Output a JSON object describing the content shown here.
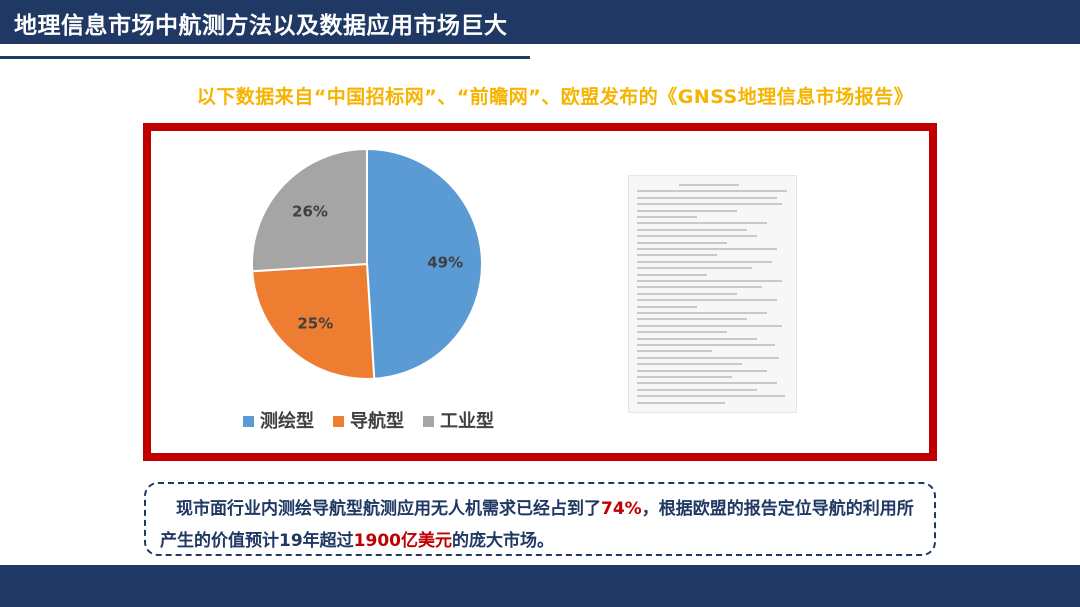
{
  "header": {
    "title": "地理信息市场中航测方法以及数据应用市场巨大"
  },
  "subtitle": "以下数据来自“中国招标网”、“前瞻网”、欧盟发布的《GNSS地理信息市场报告》",
  "chart_data": {
    "type": "pie",
    "categories": [
      "测绘型",
      "导航型",
      "工业型"
    ],
    "values": [
      49,
      25,
      26
    ],
    "labels": [
      "49%",
      "25%",
      "26%"
    ],
    "colors": [
      "#5b9bd5",
      "#ed7d31",
      "#a5a5a5"
    ],
    "legend_position": "bottom"
  },
  "note": {
    "part1": "现市面行业内测绘导航型航测应用无人机需求已经占到了",
    "hl1": "74%",
    "part2": "，根据欧盟的报告定位导航的利用所产生的价值预计19年超过",
    "hl2": "1900亿美元",
    "part3": "的庞大市场。"
  },
  "colors": {
    "navy": "#1f3864",
    "frame_red": "#c00000",
    "subtitle_gold": "#f5b400"
  }
}
